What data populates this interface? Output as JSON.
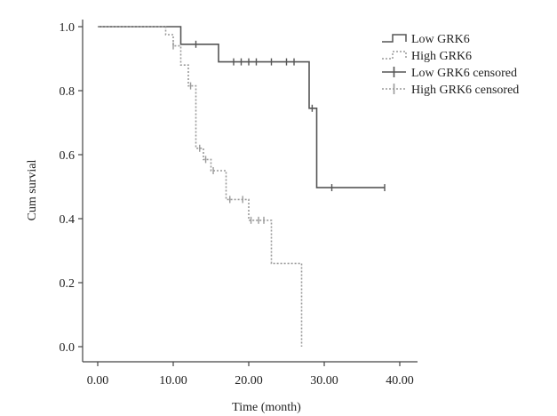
{
  "chart_data": {
    "type": "line",
    "xlabel": "Time (month)",
    "ylabel": "Cum survial",
    "xlim": [
      0,
      40
    ],
    "ylim": [
      0,
      1.0
    ],
    "x_ticks": [
      "0.00",
      "10.00",
      "20.00",
      "30.00",
      "40.00"
    ],
    "x_tick_values": [
      0,
      10,
      20,
      30,
      40
    ],
    "y_ticks": [
      "0.0",
      "0.2",
      "0.4",
      "0.6",
      "0.8",
      "1.0"
    ],
    "y_tick_values": [
      0,
      0.2,
      0.4,
      0.6,
      0.8,
      1.0
    ],
    "legend_position": "top-right",
    "series": [
      {
        "name": "Low GRK6",
        "style": "solid",
        "color": "#555555",
        "steps": [
          [
            0,
            1.0
          ],
          [
            11,
            1.0
          ],
          [
            11,
            0.945
          ],
          [
            16,
            0.945
          ],
          [
            16,
            0.89
          ],
          [
            28,
            0.89
          ],
          [
            28,
            0.745
          ],
          [
            29,
            0.745
          ],
          [
            29,
            0.497
          ],
          [
            38,
            0.497
          ]
        ],
        "censored": [
          [
            13,
            0.945
          ],
          [
            18,
            0.89
          ],
          [
            19,
            0.89
          ],
          [
            20,
            0.89
          ],
          [
            21,
            0.89
          ],
          [
            23,
            0.89
          ],
          [
            25,
            0.89
          ],
          [
            26,
            0.89
          ],
          [
            28.4,
            0.745
          ],
          [
            31,
            0.497
          ],
          [
            38,
            0.497
          ]
        ]
      },
      {
        "name": "High GRK6",
        "style": "dotted",
        "color": "#9a9a9a",
        "steps": [
          [
            0,
            1.0
          ],
          [
            9,
            1.0
          ],
          [
            9,
            0.975
          ],
          [
            10,
            0.975
          ],
          [
            10,
            0.94
          ],
          [
            11,
            0.94
          ],
          [
            11,
            0.88
          ],
          [
            12,
            0.88
          ],
          [
            12,
            0.815
          ],
          [
            13,
            0.815
          ],
          [
            13,
            0.62
          ],
          [
            14,
            0.62
          ],
          [
            14,
            0.585
          ],
          [
            15,
            0.585
          ],
          [
            15,
            0.55
          ],
          [
            17,
            0.55
          ],
          [
            17,
            0.46
          ],
          [
            20,
            0.46
          ],
          [
            20,
            0.395
          ],
          [
            23,
            0.395
          ],
          [
            23,
            0.26
          ],
          [
            27,
            0.26
          ],
          [
            27,
            0.0
          ]
        ],
        "censored": [
          [
            10,
            0.94
          ],
          [
            12.3,
            0.815
          ],
          [
            13.5,
            0.62
          ],
          [
            14.3,
            0.585
          ],
          [
            15.3,
            0.55
          ],
          [
            17.5,
            0.46
          ],
          [
            19.2,
            0.46
          ],
          [
            20.3,
            0.395
          ],
          [
            21.3,
            0.395
          ],
          [
            22,
            0.395
          ]
        ]
      }
    ],
    "legend": [
      {
        "label": "Low GRK6",
        "kind": "step-solid"
      },
      {
        "label": "High GRK6",
        "kind": "step-dotted"
      },
      {
        "label": "Low GRK6 censored",
        "kind": "cross-solid"
      },
      {
        "label": "High GRK6 censored",
        "kind": "cross-dotted"
      }
    ]
  }
}
